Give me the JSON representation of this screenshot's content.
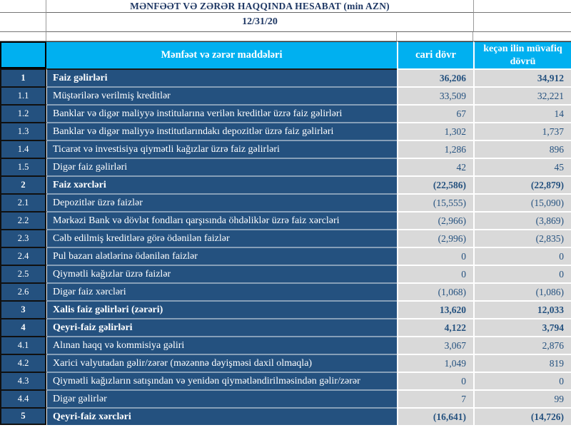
{
  "report": {
    "title": "MƏNFƏƏT VƏ ZƏRƏR HAQQINDA HESABAT (min AZN)",
    "date": "12/31/20"
  },
  "colors": {
    "header_cyan": "#00B0F0",
    "row_navy": "#24517F",
    "value_gray": "#D9D9D9",
    "title_navy": "#1F3864"
  },
  "table": {
    "headers": {
      "items": "Mənfəət və zərər maddələri",
      "current": "cari dövr",
      "previous": "keçən ilin müvafiq dövrü"
    },
    "rows": [
      {
        "no": "1",
        "label": "Faiz  gəlirləri",
        "current": "36,206",
        "previous": "34,912",
        "section": true
      },
      {
        "no": "1.1",
        "label": "Müştərilərə verilmiş kreditlər",
        "current": "33,509",
        "previous": "32,221",
        "section": false
      },
      {
        "no": "1.2",
        "label": "Banklar və digər maliyyə institularına verilən kreditlər üzrə faiz gəlirləri",
        "current": "67",
        "previous": "14",
        "section": false
      },
      {
        "no": "1.3",
        "label": "Banklar və digər maliyyə institutlarındakı depozitlər üzrə faiz gəlirləri",
        "current": "1,302",
        "previous": "1,737",
        "section": false
      },
      {
        "no": "1.4",
        "label": "Ticarət və investisiya qiymətli kağızlar üzrə faiz gəlirləri",
        "current": "1,286",
        "previous": "896",
        "section": false
      },
      {
        "no": "1.5",
        "label": "Digər faiz gəlirləri",
        "current": "42",
        "previous": "45",
        "section": false
      },
      {
        "no": "2",
        "label": "Faiz xərcləri",
        "current": "(22,586)",
        "previous": "(22,879)",
        "section": true
      },
      {
        "no": "2.1",
        "label": "Depozitlər üzrə faizlər",
        "current": "(15,555)",
        "previous": "(15,090)",
        "section": false
      },
      {
        "no": "2.2",
        "label": "Mərkəzi Bank və dövlət fondları qarşısında öhdəliklər üzrə faiz xərcləri",
        "current": "(2,966)",
        "previous": "(3,869)",
        "section": false
      },
      {
        "no": "2.3",
        "label": "Cəlb edilmiş kreditlərə görə ödənilən faizlər",
        "current": "(2,996)",
        "previous": "(2,835)",
        "section": false
      },
      {
        "no": "2.4",
        "label": "Pul bazarı alətlərinə ödənilən faizlər",
        "current": "0",
        "previous": "0",
        "section": false
      },
      {
        "no": "2.5",
        "label": "Qiymətli kağızlar üzrə faizlər",
        "current": "0",
        "previous": "0",
        "section": false
      },
      {
        "no": "2.6",
        "label": "Digər faiz xərcləri",
        "current": "(1,068)",
        "previous": "(1,086)",
        "section": false
      },
      {
        "no": "3",
        "label": "Xalis faiz gəlirləri (zərəri)",
        "current": "13,620",
        "previous": "12,033",
        "section": true
      },
      {
        "no": "4",
        "label": "Qeyri-faiz gəlirləri",
        "current": "4,122",
        "previous": "3,794",
        "section": true
      },
      {
        "no": "4.1",
        "label": "Alınan haqq və kommisiya gəliri",
        "current": "3,067",
        "previous": "2,876",
        "section": false
      },
      {
        "no": "4.2",
        "label": "Xarici valyutadan gəlir/zərər (məzənnə dəyişməsi daxil olmaqla)",
        "current": "1,049",
        "previous": "819",
        "section": false
      },
      {
        "no": "4.3",
        "label": "Qiymətli kağızların satışından və yenidən qiymətləndirilməsindən gəlir/zərər",
        "current": "0",
        "previous": "0",
        "section": false
      },
      {
        "no": "4.4",
        "label": "Digər gəlirlər",
        "current": "7",
        "previous": "99",
        "section": false
      },
      {
        "no": "5",
        "label": "Qeyri-faiz xərcləri",
        "current": "(16,641)",
        "previous": "(14,726)",
        "section": true
      }
    ]
  }
}
